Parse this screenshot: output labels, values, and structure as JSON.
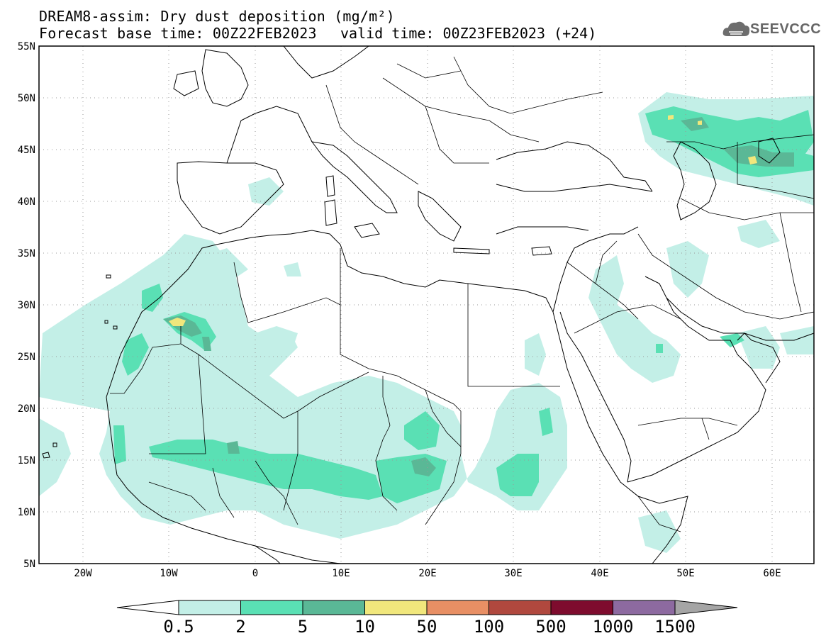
{
  "title": {
    "line1": "DREAM8-assim: Dry dust deposition (mg/m²)",
    "line2": "Forecast base time: 00Z22FEB2023",
    "valid": "valid time: 00Z23FEB2023 (+24)"
  },
  "logo": {
    "text": "SEEVCCC",
    "icon": "cloud-icon"
  },
  "map": {
    "lat_labels": [
      "55N",
      "50N",
      "45N",
      "40N",
      "35N",
      "30N",
      "25N",
      "20N",
      "15N",
      "10N",
      "5N"
    ],
    "lon_labels": [
      "20W",
      "10W",
      "0",
      "10E",
      "20E",
      "30E",
      "40E",
      "50E",
      "60E"
    ],
    "lon_range": [
      -25,
      65
    ],
    "lat_range": [
      5,
      55
    ]
  },
  "legend": {
    "values": [
      "0.5",
      "2",
      "5",
      "10",
      "50",
      "100",
      "500",
      "1000",
      "1500"
    ],
    "colors": [
      "#c3efe7",
      "#5ae0b4",
      "#5ab896",
      "#f1e77c",
      "#e88f64",
      "#b0483e",
      "#7e0c2e",
      "#8d6aa0",
      "#a5a5a5"
    ]
  },
  "colors": {
    "level1": "#c3efe7",
    "level2": "#5ae0b4",
    "level3": "#5ab896",
    "level4": "#f1e77c"
  }
}
